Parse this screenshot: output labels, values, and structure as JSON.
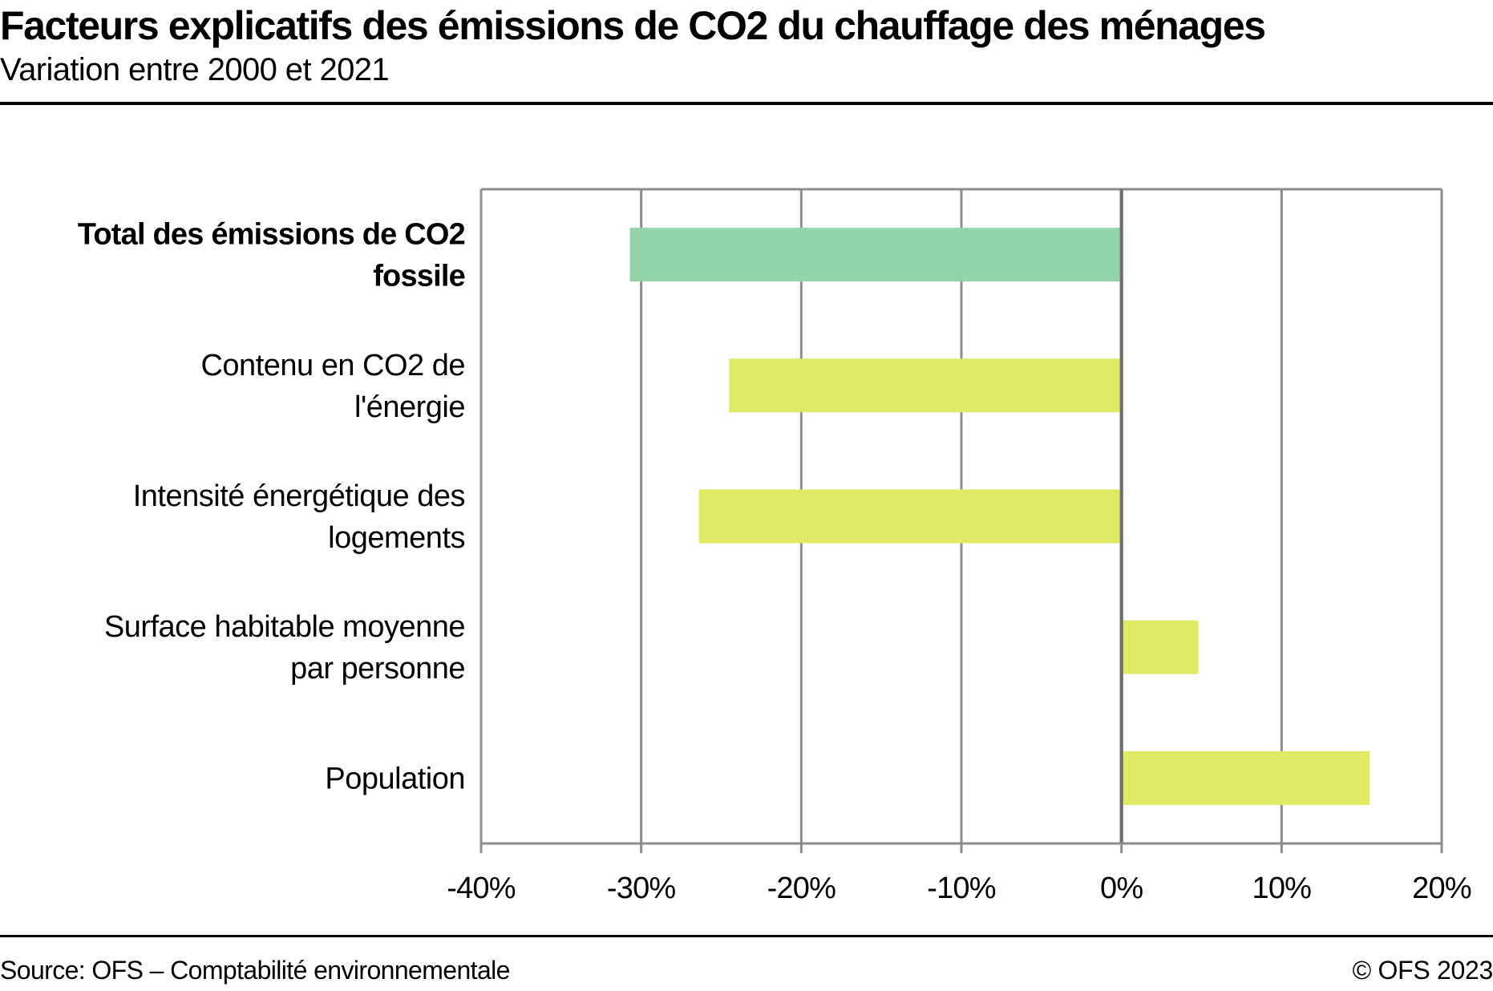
{
  "header": {
    "title": "Facteurs explicatifs des émissions de CO2 du chauffage des ménages",
    "subtitle": "Variation entre 2000 et 2021"
  },
  "footer": {
    "source": "Source: OFS – Comptabilité environnementale",
    "copyright": "© OFS 2023"
  },
  "chart_data": {
    "type": "bar",
    "orientation": "horizontal",
    "title": "Facteurs explicatifs des émissions de CO2 du chauffage des ménages",
    "subtitle": "Variation entre 2000 et 2021",
    "xlabel": "",
    "ylabel": "",
    "xlim": [
      -40,
      20
    ],
    "x_ticks": [
      -40,
      -30,
      -20,
      -10,
      0,
      10,
      20
    ],
    "x_tick_labels": [
      "-40%",
      "-30%",
      "-20%",
      "-10%",
      "0%",
      "10%",
      "20%"
    ],
    "grid": true,
    "unit": "%",
    "categories": [
      {
        "lines": [
          "Total des émissions de CO2",
          "fossile"
        ],
        "bold": true
      },
      {
        "lines": [
          "Contenu en CO2 de",
          "l'énergie"
        ],
        "bold": false
      },
      {
        "lines": [
          "Intensité énergétique des",
          "logements"
        ],
        "bold": false
      },
      {
        "lines": [
          "Surface habitable moyenne",
          "par personne"
        ],
        "bold": false
      },
      {
        "lines": [
          "Population"
        ],
        "bold": false
      }
    ],
    "values": [
      -30.7,
      -24.5,
      -26.4,
      4.8,
      15.5
    ],
    "colors": [
      "#93d3a8",
      "#e0ea62",
      "#e0ea62",
      "#e0ea62",
      "#e0ea62"
    ],
    "grid_color": "#8c8c8c",
    "zero_line_color": "#6e6e6e"
  }
}
